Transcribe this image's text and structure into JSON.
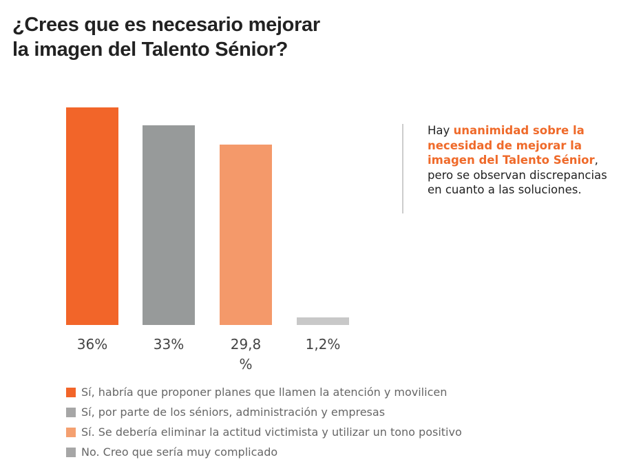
{
  "title_line1": "¿Crees que es necesario mejorar",
  "title_line2": "la imagen del Talento Sénior?",
  "chart_data": {
    "type": "bar",
    "categories": [
      "Sí, habría que proponer planes que llamen la atención y movilicen",
      "Sí, por parte de los séniors, administración y empresas",
      "Sí. Se debería eliminar la actitud victimista y utilizar un tono positivo",
      "No. Creo que sería muy complicado"
    ],
    "values": [
      36,
      33,
      29.8,
      1.2
    ],
    "data_labels": [
      "36%",
      "33%",
      "29,8 %",
      "1,2%"
    ],
    "colors": [
      "#f26529",
      "#979a9a",
      "#f4996a",
      "#c8c8c8"
    ],
    "legend_colors": [
      "#f26529",
      "#a6a6a6",
      "#f4a070",
      "#a6a6a6"
    ],
    "ylim": [
      0,
      36
    ],
    "grid": false,
    "legend": "bottom"
  },
  "note": {
    "lead": "Hay ",
    "highlight": "unanimidad sobre la necesidad de mejorar la imagen del Talento Sénior",
    "rest": ", pero se observan discrepancias en cuanto a las soluciones."
  }
}
